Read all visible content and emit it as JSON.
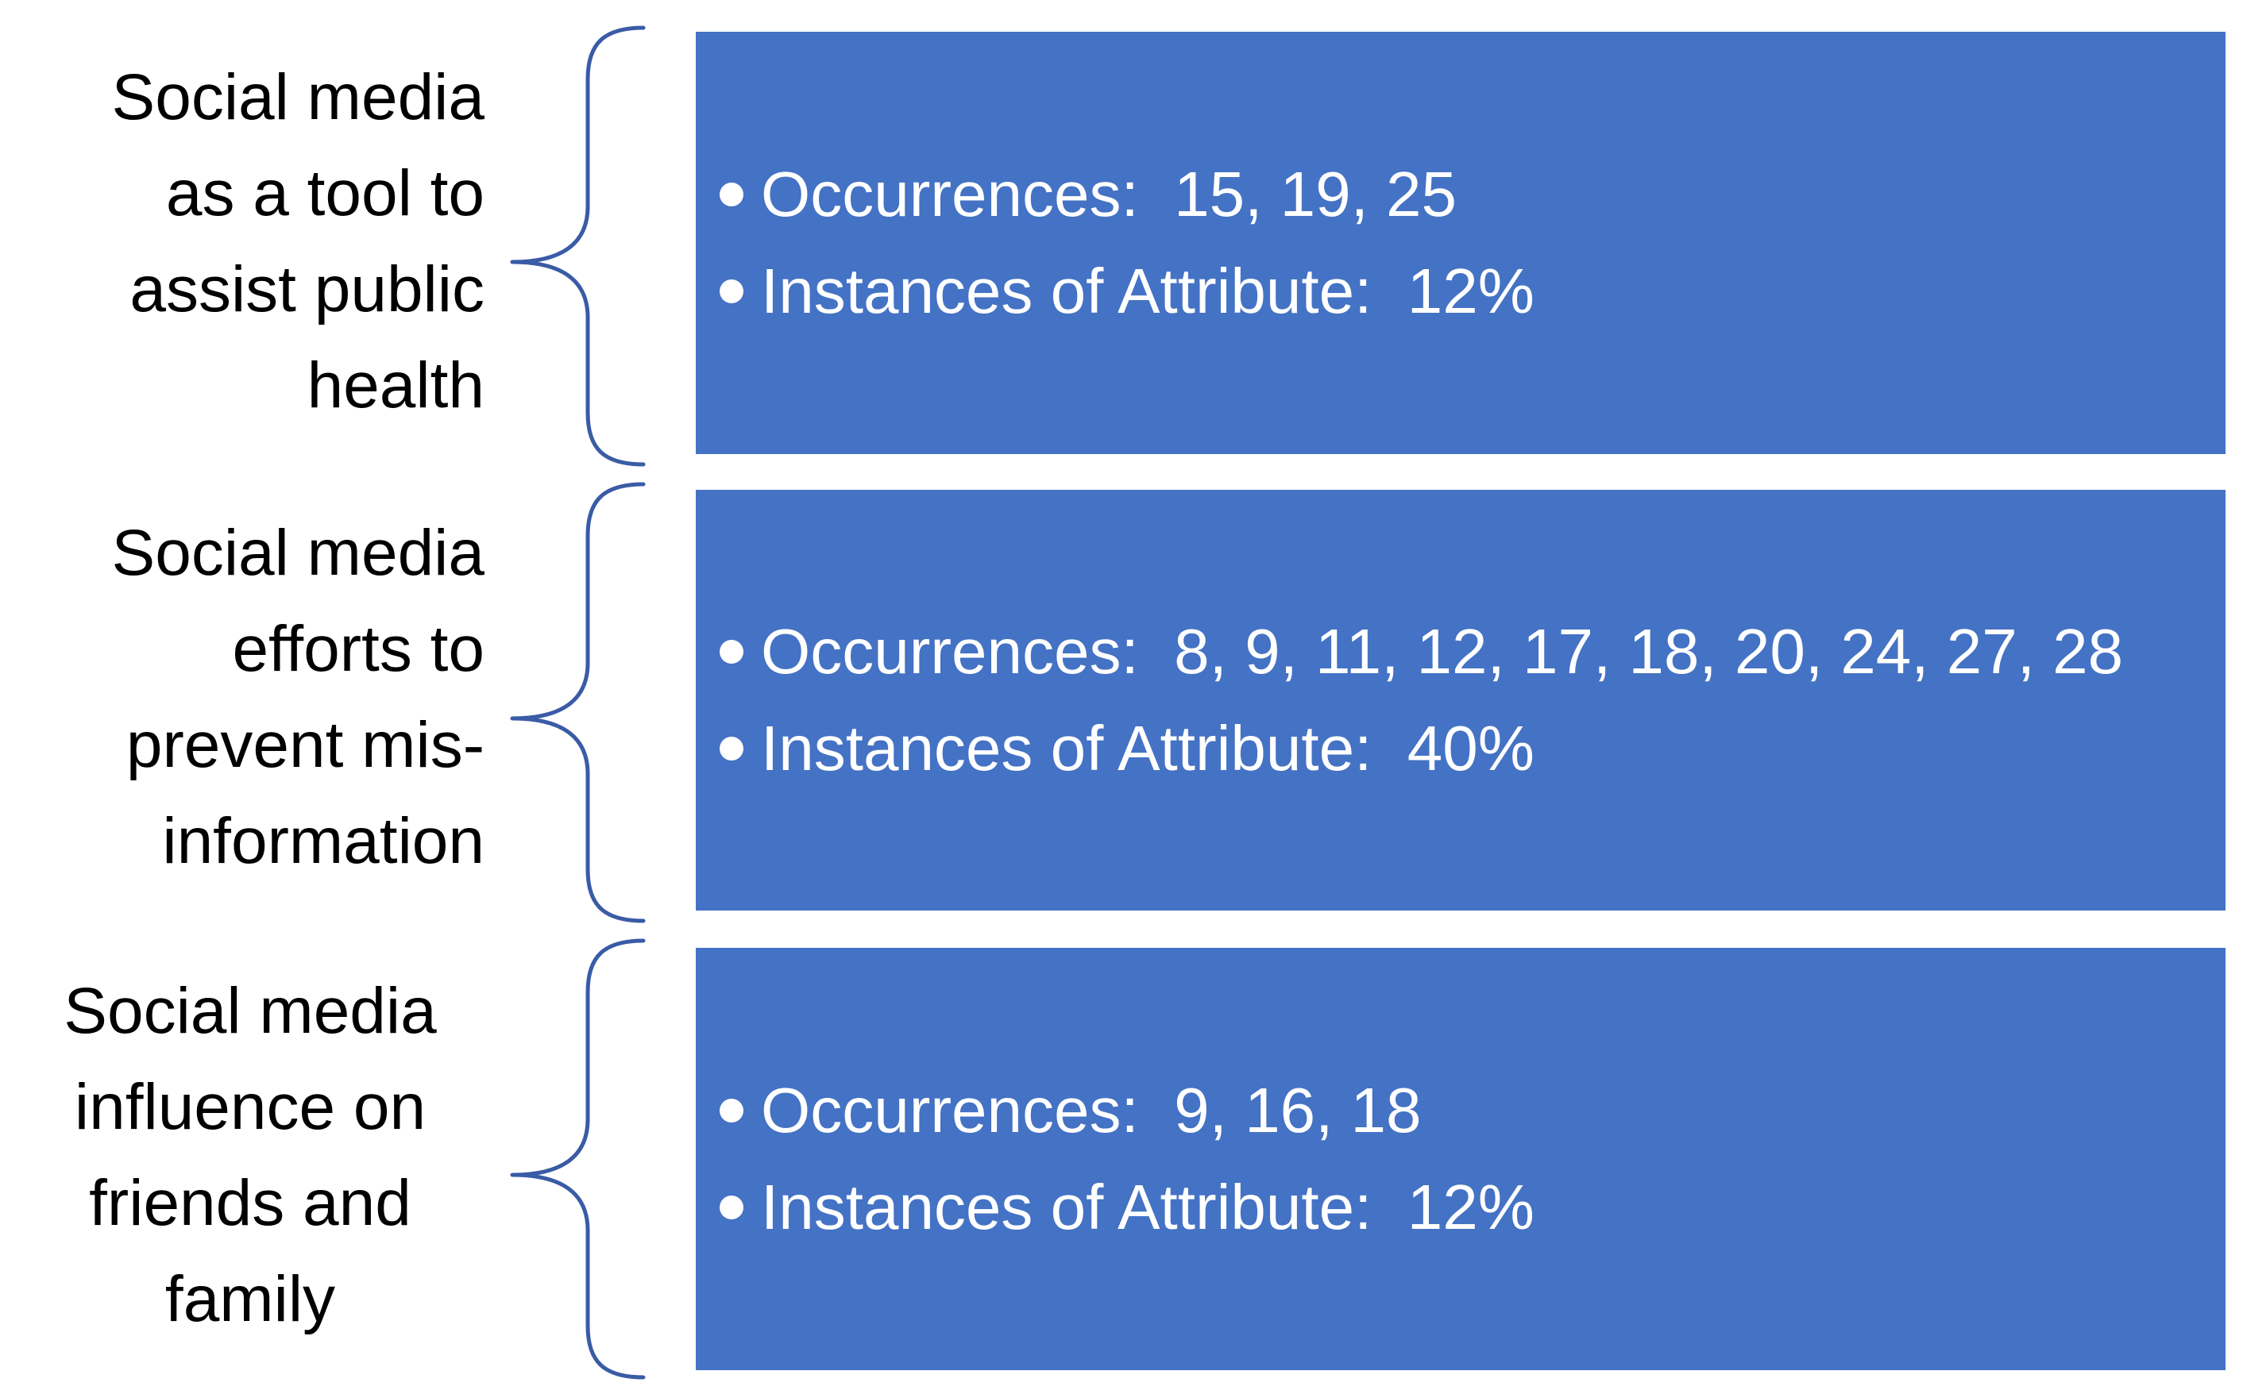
{
  "colors": {
    "box_fill": "#4472C4",
    "brace_stroke": "#3A5BA5",
    "box_text": "#FFFFFF",
    "label_text": "#000000"
  },
  "icons": {
    "bullet": "bullet-dot-icon",
    "brace": "curly-brace-icon"
  },
  "rows": [
    {
      "label_lines": [
        "Social media",
        "as a tool to",
        "assist public",
        "health"
      ],
      "label_align": "right",
      "bullets": [
        {
          "key": "Occurrences:  ",
          "value": "15, 19, 25"
        },
        {
          "key": "Instances of Attribute:  ",
          "value": "12%"
        }
      ]
    },
    {
      "label_lines": [
        "Social media",
        "efforts to",
        "prevent mis-",
        "information"
      ],
      "label_align": "right",
      "bullets": [
        {
          "key": "Occurrences:  ",
          "value": "8, 9, 11, 12, 17, 18, 20, 24, 27, 28"
        },
        {
          "key": "Instances of Attribute:  ",
          "value": "40%"
        }
      ]
    },
    {
      "label_lines": [
        "Social media",
        "influence on",
        "friends and",
        "family"
      ],
      "label_align": "center",
      "bullets": [
        {
          "key": "Occurrences:  ",
          "value": "9, 16, 18"
        },
        {
          "key": "Instances of Attribute:  ",
          "value": "12%"
        }
      ]
    }
  ]
}
